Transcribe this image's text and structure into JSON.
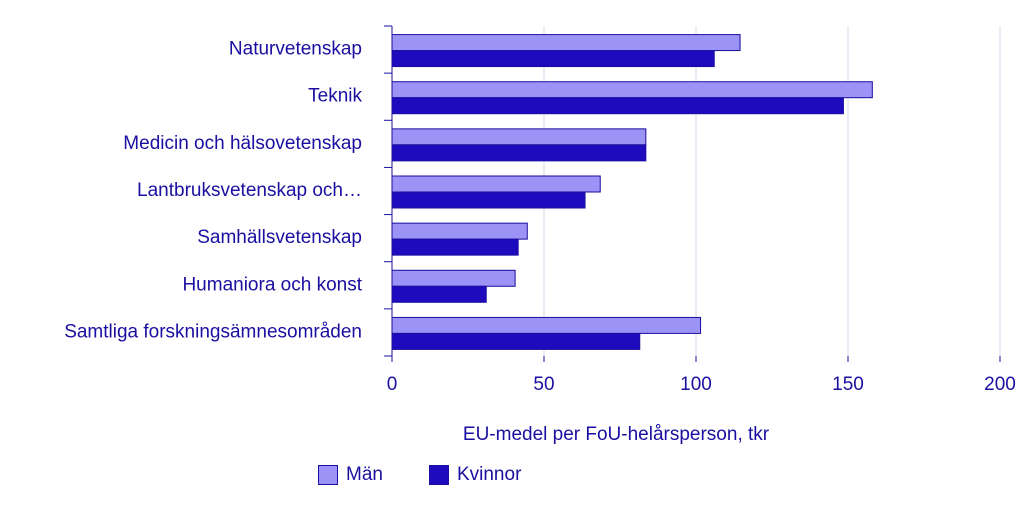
{
  "chart_data": {
    "type": "bar",
    "orientation": "horizontal",
    "categories": [
      "Naturvetenskap",
      "Teknik",
      "Medicin och hälsovetenskap",
      "Lantbruksvetenskap och…",
      "Samhällsvetenskap",
      "Humaniora och konst",
      "Samtliga forskningsämnesområden"
    ],
    "series": [
      {
        "name": "Män",
        "color": "#9b93f5",
        "values": [
          114.5,
          158,
          83.5,
          68.5,
          44.5,
          40.5,
          101.5
        ]
      },
      {
        "name": "Kvinnor",
        "color": "#1d0bbd",
        "values": [
          106,
          148.5,
          83.5,
          63.5,
          41.5,
          31,
          81.5
        ]
      }
    ],
    "xlabel": "EU-medel per FoU-helårsperson, tkr",
    "xlim": [
      0,
      200
    ],
    "xticks": [
      0,
      50,
      100,
      150,
      200
    ],
    "grid": "vertical",
    "legend_position": "bottom"
  }
}
